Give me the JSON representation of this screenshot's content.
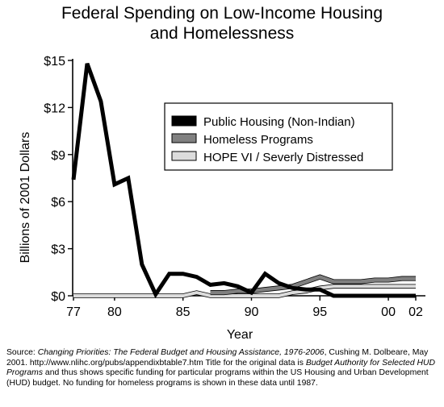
{
  "chart_data": {
    "type": "line",
    "title_line1": "Federal Spending on Low-Income Housing",
    "title_line2": "and Homelessness",
    "xlabel": "Year",
    "ylabel": "Billions of 2001 Dollars",
    "xlim": [
      1977,
      2002
    ],
    "ylim": [
      0,
      15
    ],
    "x_ticks": [
      1977,
      1980,
      1985,
      1990,
      1995,
      2000,
      2002
    ],
    "x_tick_labels": [
      "77",
      "80",
      "85",
      "90",
      "95",
      "00",
      "02"
    ],
    "y_ticks": [
      0,
      3,
      6,
      9,
      12,
      15
    ],
    "y_tick_labels": [
      "$0",
      "$3",
      "$6",
      "$9",
      "$12",
      "$15"
    ],
    "legend_position": "upper-right",
    "series": [
      {
        "name": "Public Housing (Non-Indian)",
        "color": "#000000",
        "x": [
          1977,
          1978,
          1979,
          1980,
          1981,
          1982,
          1983,
          1984,
          1985,
          1986,
          1987,
          1988,
          1989,
          1990,
          1991,
          1992,
          1993,
          1994,
          1995,
          1996,
          1997,
          1998,
          1999,
          2000,
          2001,
          2002
        ],
        "values": [
          7.4,
          14.8,
          12.4,
          7.1,
          7.5,
          2.0,
          0.1,
          1.4,
          1.4,
          1.2,
          0.7,
          0.8,
          0.6,
          0.2,
          1.4,
          0.8,
          0.5,
          0.4,
          0.4,
          0.0,
          0.0,
          0.0,
          0.0,
          0.0,
          0.0,
          0.0
        ]
      },
      {
        "name": "Homeless Programs",
        "color": "#808080",
        "x": [
          1987,
          1988,
          1989,
          1990,
          1991,
          1992,
          1993,
          1994,
          1995,
          1996,
          1997,
          1998,
          1999,
          2000,
          2001,
          2002
        ],
        "values": [
          0.2,
          0.2,
          0.3,
          0.3,
          0.4,
          0.5,
          0.6,
          0.9,
          1.2,
          0.9,
          0.9,
          0.9,
          1.0,
          1.0,
          1.1,
          1.1
        ]
      },
      {
        "name": "HOPE VI / Severly Distressed",
        "color": "#dcdcdc",
        "x": [
          1977,
          1978,
          1979,
          1980,
          1981,
          1982,
          1983,
          1984,
          1985,
          1986,
          1987,
          1988,
          1989,
          1990,
          1991,
          1992,
          1993,
          1994,
          1995,
          1996,
          1997,
          1998,
          1999,
          2000,
          2001,
          2002
        ],
        "values": [
          0.0,
          0.0,
          0.0,
          0.0,
          0.0,
          0.0,
          0.0,
          0.0,
          0.0,
          0.2,
          0.0,
          0.0,
          0.0,
          0.0,
          0.0,
          0.0,
          0.2,
          0.3,
          0.5,
          0.6,
          0.6,
          0.6,
          0.6,
          0.6,
          0.6,
          0.6
        ]
      }
    ]
  },
  "source": {
    "prefix": "Source:",
    "work_title": "Changing Priorities: The Federal Budget and Housing Assistance, 1976-2006",
    "mid1": ", Cushing M. Dolbeare, May 2001. http://www.nlihc.org/pubs/appendixbtable7.htm  Title for the original data is ",
    "data_title": "Budget Authority for Selected HUD Programs",
    "mid2": " and thus shows specific funding for particular programs within the US Housing and Urban Development (HUD) budget.  No funding for homeless programs is shown in these data until 1987."
  }
}
